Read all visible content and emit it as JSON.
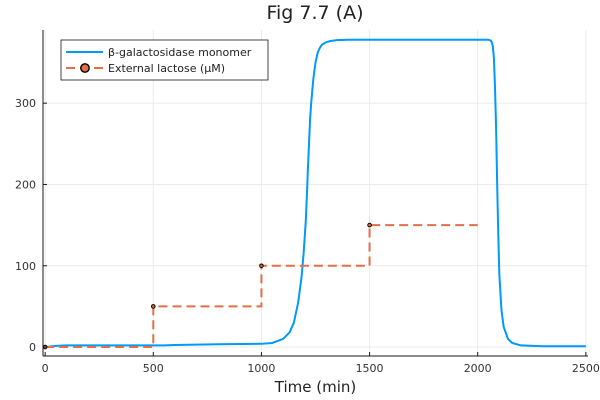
{
  "chart_data": {
    "type": "line",
    "title": "Fig 7.7 (A)",
    "xlabel": "Time (min)",
    "ylabel": "",
    "xlim": [
      -10,
      2510
    ],
    "ylim": [
      -11,
      390
    ],
    "xticks": [
      0,
      500,
      1000,
      1500,
      2000,
      2500
    ],
    "yticks": [
      0,
      100,
      200,
      300
    ],
    "grid": true,
    "legend_position": "top-left",
    "series": [
      {
        "name": "β-galactosidase monomer",
        "color": "#009af9",
        "style": "solid",
        "x": [
          0,
          50,
          100,
          200,
          300,
          400,
          500,
          550,
          600,
          700,
          800,
          900,
          1000,
          1050,
          1100,
          1130,
          1150,
          1170,
          1185,
          1195,
          1205,
          1210,
          1215,
          1220,
          1225,
          1230,
          1240,
          1250,
          1260,
          1270,
          1280,
          1300,
          1320,
          1350,
          1400,
          1500,
          1600,
          1700,
          1800,
          1900,
          2000,
          2050,
          2060,
          2065,
          2070,
          2075,
          2080,
          2085,
          2090,
          2095,
          2100,
          2110,
          2120,
          2140,
          2160,
          2200,
          2300,
          2400,
          2500
        ],
        "y": [
          0,
          1.5,
          2,
          2,
          2,
          2,
          2,
          2,
          2.5,
          3,
          3.5,
          3.8,
          4,
          5,
          10,
          18,
          30,
          55,
          85,
          115,
          155,
          185,
          220,
          250,
          280,
          300,
          330,
          350,
          362,
          368,
          372,
          375,
          376.5,
          377.5,
          378,
          378,
          378,
          378,
          378,
          378,
          378,
          378,
          377,
          375,
          370,
          355,
          320,
          270,
          200,
          140,
          90,
          45,
          25,
          10,
          5,
          2,
          1,
          1,
          1
        ]
      },
      {
        "name": "External lactose (μM)",
        "color": "#e26f46",
        "style": "dashed-step",
        "marker": "circle",
        "x": [
          0,
          500,
          1000,
          1500,
          2000
        ],
        "y": [
          0,
          50,
          100,
          150,
          150
        ]
      }
    ]
  }
}
